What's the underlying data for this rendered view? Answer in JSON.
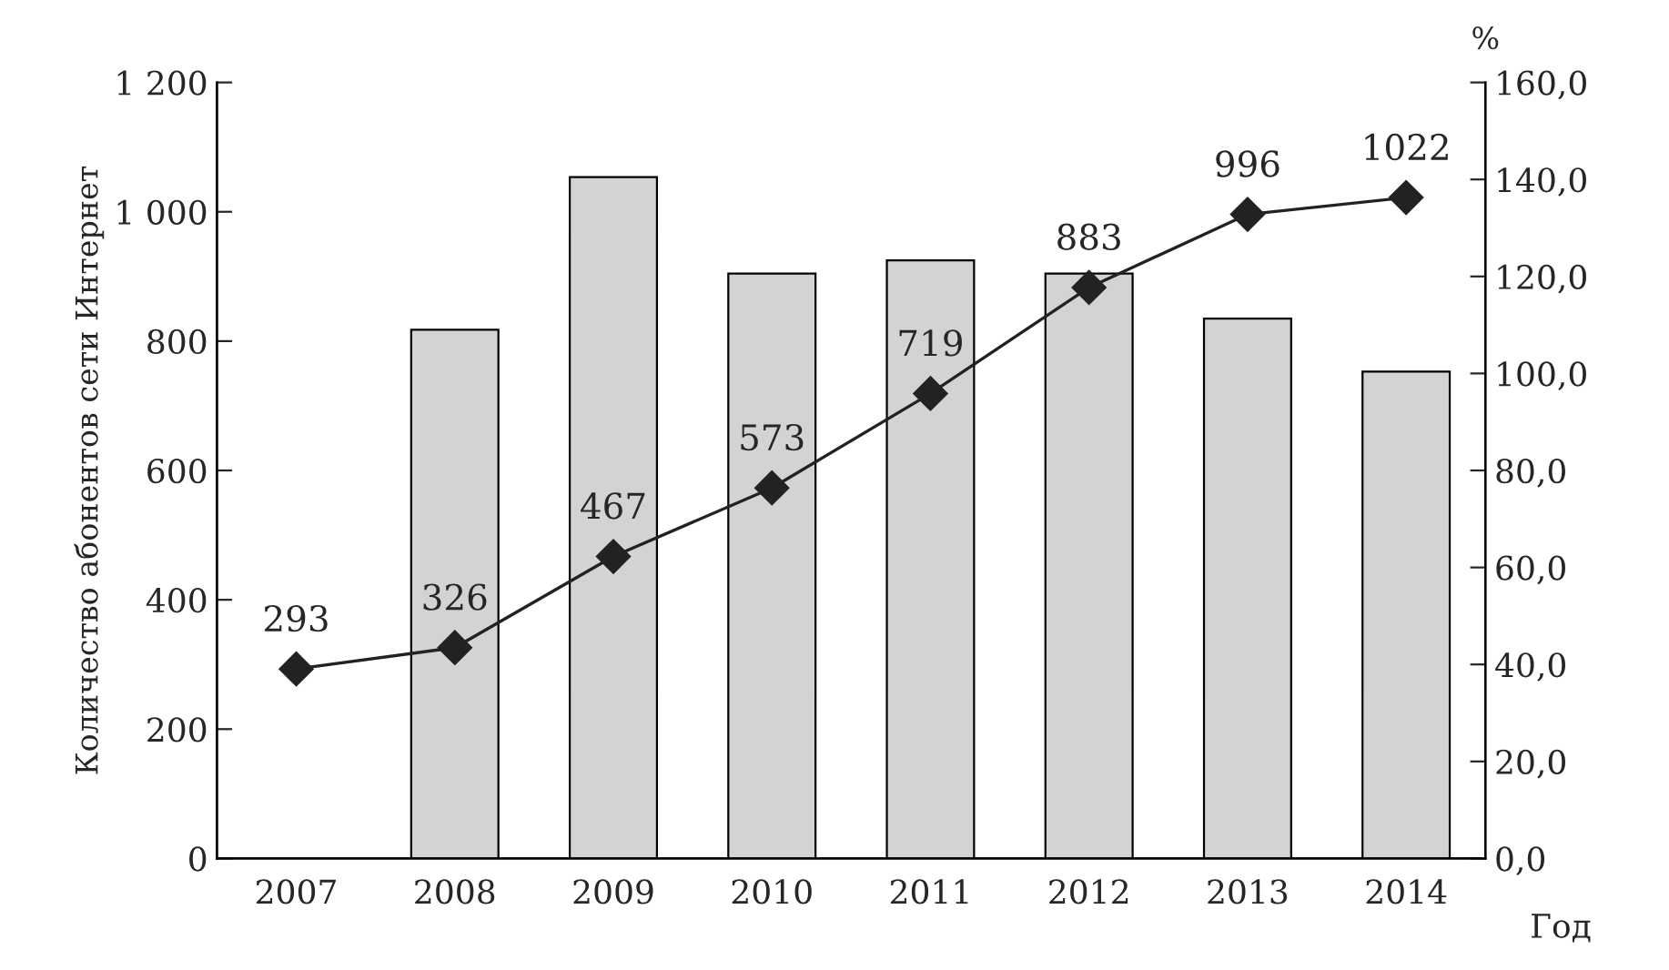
{
  "chart_data": {
    "type": "bar",
    "ylabel": "Количество абонентов сети Интернет",
    "y2label": "%",
    "xlabel": "Год",
    "categories": [
      "2007",
      "2008",
      "2009",
      "2010",
      "2011",
      "2012",
      "2013",
      "2014"
    ],
    "series": [
      {
        "axis": "y2",
        "color": "#d3d3d3",
        "values": [
          null,
          109,
          140.5,
          120.6,
          123.3,
          120.6,
          111.3,
          100.4
        ]
      },
      {
        "type": "line",
        "axis": "y",
        "color": "#222222",
        "marker": "diamond",
        "line_style": "solid",
        "values": [
          293,
          326,
          467,
          573,
          719,
          883,
          996,
          1022
        ],
        "value_labels": [
          "293",
          "326",
          "467",
          "573",
          "719",
          "883",
          "996",
          "1022"
        ]
      }
    ],
    "ylim": [
      0,
      1200
    ],
    "yticks": [
      0,
      200,
      400,
      600,
      800,
      {
        "value": 1000,
        "label": "1 000"
      },
      {
        "value": 1200,
        "label": "1 200"
      }
    ],
    "y2lim": [
      0,
      160
    ],
    "y2ticks": [
      {
        "value": 0,
        "label": "0,0"
      },
      {
        "value": 20,
        "label": "20,0"
      },
      {
        "value": 40,
        "label": "40,0"
      },
      {
        "value": 60,
        "label": "60,0"
      },
      {
        "value": 80,
        "label": "80,0"
      },
      {
        "value": 100,
        "label": "100,0"
      },
      {
        "value": 120,
        "label": "120,0"
      },
      {
        "value": 140,
        "label": "140,0"
      },
      {
        "value": 160,
        "label": "160,0"
      }
    ],
    "grid": false,
    "legend": false
  }
}
